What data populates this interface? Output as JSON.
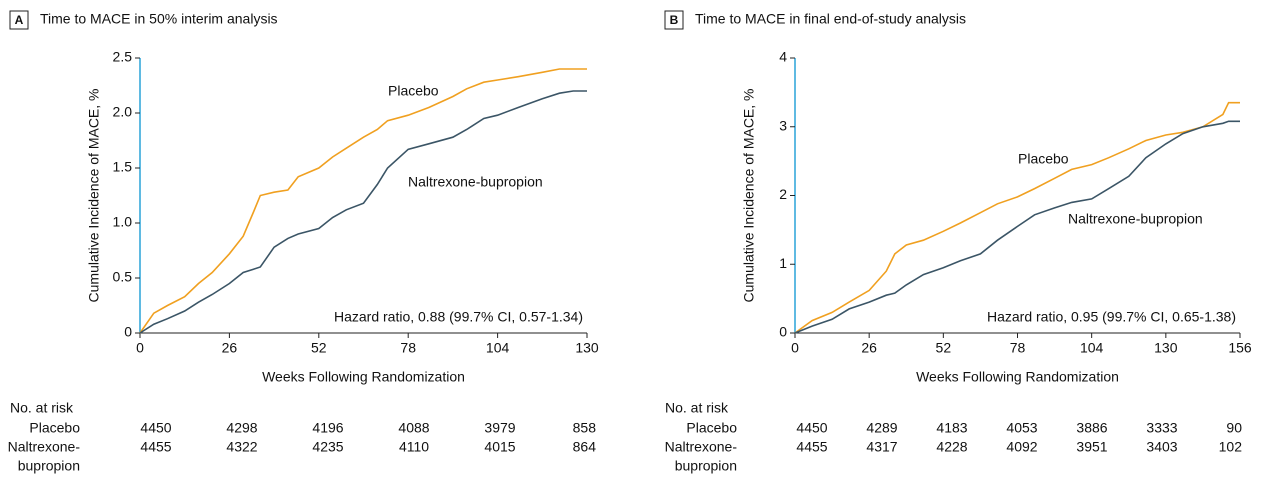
{
  "chart_data": [
    {
      "type": "line",
      "panel": "A",
      "title": "Time to MACE in 50% interim analysis",
      "x_label": "Weeks Following Randomization",
      "y_label": "Cumulative Incidence of MACE, %",
      "annotation": "Hazard ratio, 0.88 (99.7% CI, 0.57-1.34)",
      "xlim": [
        0,
        130
      ],
      "xticks": [
        0,
        26,
        52,
        78,
        104,
        130
      ],
      "ylim": [
        0,
        2.5
      ],
      "yticks": [
        0,
        0.5,
        {
          "value": 1,
          "label": "1.0"
        },
        1.5,
        {
          "value": 2,
          "label": "2.0"
        },
        2.5
      ],
      "x": [
        0,
        4,
        8,
        13,
        17,
        21,
        26,
        30,
        33,
        35,
        39,
        43,
        46,
        52,
        56,
        60,
        65,
        69,
        72,
        78,
        84,
        91,
        95,
        100,
        104,
        110,
        117,
        122,
        126,
        130
      ],
      "series": [
        {
          "name": "Placebo",
          "color": "#f0a020",
          "values": [
            0,
            0.18,
            0.25,
            0.33,
            0.45,
            0.55,
            0.72,
            0.88,
            1.1,
            1.25,
            1.28,
            1.3,
            1.42,
            1.5,
            1.6,
            1.68,
            1.78,
            1.85,
            1.93,
            1.98,
            2.05,
            2.15,
            2.22,
            2.28,
            2.3,
            2.33,
            2.37,
            2.4,
            2.4,
            2.4
          ]
        },
        {
          "name": "Naltrexone-bupropion",
          "color": "#3b5566",
          "values": [
            0,
            0.08,
            0.13,
            0.2,
            0.28,
            0.35,
            0.45,
            0.55,
            0.58,
            0.6,
            0.78,
            0.86,
            0.9,
            0.95,
            1.05,
            1.12,
            1.18,
            1.35,
            1.5,
            1.67,
            1.72,
            1.78,
            1.85,
            1.95,
            1.98,
            2.05,
            2.13,
            2.18,
            2.2,
            2.2
          ]
        }
      ],
      "at_risk": {
        "title": "No. at risk",
        "rows": [
          {
            "label": [
              "Placebo"
            ],
            "values": [
              4450,
              4298,
              4196,
              4088,
              3979,
              858
            ]
          },
          {
            "label": [
              "Naltrexone-",
              "bupropion"
            ],
            "values": [
              4455,
              4322,
              4235,
              4110,
              4015,
              864
            ]
          }
        ]
      }
    },
    {
      "type": "line",
      "panel": "B",
      "title": "Time to MACE in final end-of-study analysis",
      "x_label": "Weeks Following Randomization",
      "y_label": "Cumulative Incidence of MACE, %",
      "annotation": "Hazard ratio, 0.95 (99.7% CI, 0.65-1.38)",
      "xlim": [
        0,
        156
      ],
      "xticks": [
        0,
        26,
        52,
        78,
        104,
        130,
        156
      ],
      "ylim": [
        0,
        4
      ],
      "yticks": [
        0,
        1,
        2,
        3,
        4
      ],
      "x": [
        0,
        6,
        13,
        19,
        26,
        32,
        35,
        39,
        45,
        52,
        58,
        65,
        71,
        78,
        84,
        91,
        97,
        104,
        110,
        117,
        123,
        130,
        136,
        143,
        150,
        152,
        156
      ],
      "series": [
        {
          "name": "Placebo",
          "color": "#f0a020",
          "values": [
            0,
            0.18,
            0.3,
            0.45,
            0.62,
            0.9,
            1.15,
            1.28,
            1.35,
            1.48,
            1.6,
            1.75,
            1.88,
            1.98,
            2.1,
            2.25,
            2.38,
            2.45,
            2.55,
            2.68,
            2.8,
            2.88,
            2.92,
            3.0,
            3.18,
            3.35,
            3.35
          ]
        },
        {
          "name": "Naltrexone-bupropion",
          "color": "#3b5566",
          "values": [
            0,
            0.1,
            0.2,
            0.35,
            0.45,
            0.55,
            0.58,
            0.7,
            0.85,
            0.95,
            1.05,
            1.15,
            1.35,
            1.55,
            1.72,
            1.82,
            1.9,
            1.95,
            2.1,
            2.28,
            2.55,
            2.75,
            2.9,
            3.0,
            3.05,
            3.08,
            3.08
          ]
        }
      ],
      "at_risk": {
        "title": "No. at risk",
        "rows": [
          {
            "label": [
              "Placebo"
            ],
            "values": [
              4450,
              4289,
              4183,
              4053,
              3886,
              3333,
              90
            ]
          },
          {
            "label": [
              "Naltrexone-",
              "bupropion"
            ],
            "values": [
              4455,
              4317,
              4228,
              4092,
              3951,
              3403,
              102
            ]
          }
        ]
      }
    }
  ]
}
